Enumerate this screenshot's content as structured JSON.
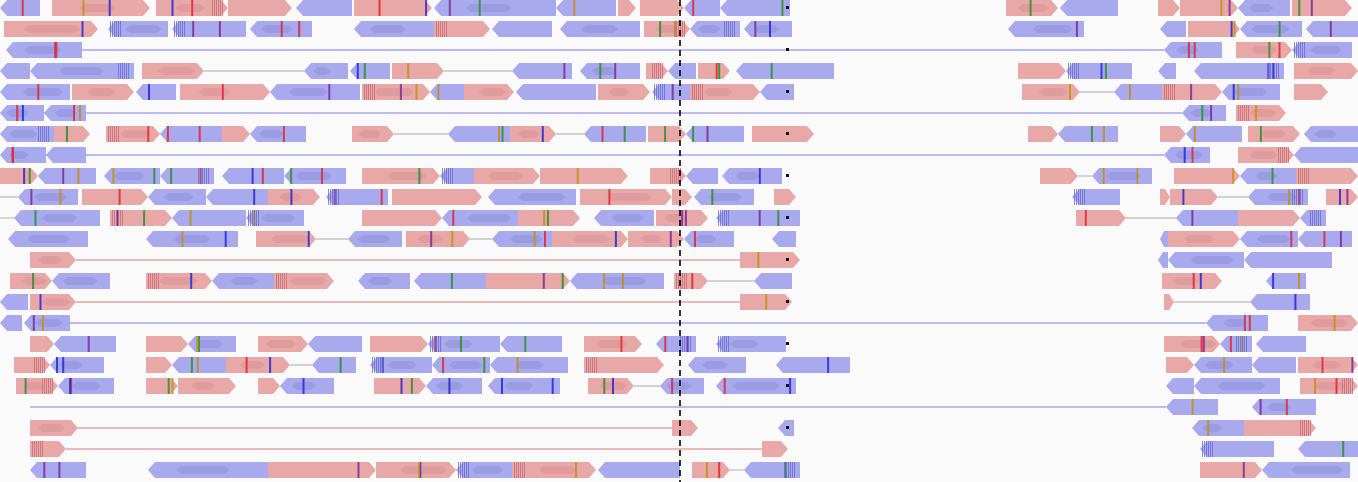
{
  "track": {
    "strand_colors": {
      "forward": "#e8a8a8",
      "reverse": "#a9a9ee"
    },
    "link_colors": {
      "forward": "#e4a2a2",
      "reverse": "#a6a6ec",
      "neutral": "#c4c4c4"
    },
    "mismatch_colors": [
      "#e0262f",
      "#2a8f2a",
      "#2626d9",
      "#c09010",
      "#7a2a9a"
    ],
    "insertion_color": "#6a2aa6",
    "center_line_color": "#000000"
  }
}
